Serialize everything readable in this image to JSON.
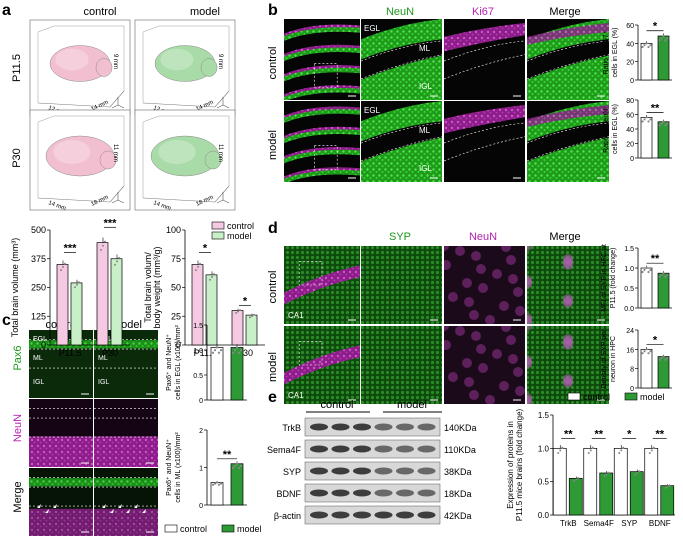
{
  "colors": {
    "green_fluor": "#2fdc2a",
    "magenta_fluor": "#cc2fc6",
    "control_bar": "#f6c9e3",
    "model_bar": "#c9efc9",
    "control_bar_e": "#ffffff",
    "model_bar_e": "#2e9a35",
    "brain_control": "#f2bfd0",
    "brain_model": "#a9dba8"
  },
  "panel_a": {
    "letter": "a",
    "col_headers": [
      "control",
      "model"
    ],
    "row_labels": [
      "P11.5",
      "P30"
    ],
    "dims": {
      "p115_control": [
        "12 mm",
        "14 mm",
        "9 mm"
      ],
      "p115_model": [
        "12 mm",
        "14 mm",
        "9 mm"
      ],
      "p30_control": [
        "14 mm",
        "18 mm",
        "11 mm"
      ],
      "p30_model": [
        "14 mm",
        "18 mm",
        "11 mm"
      ]
    },
    "axis_letters": [
      "x",
      "y",
      "z"
    ]
  },
  "panel_b": {
    "letter": "b",
    "col_headers": [
      "NeuN",
      "Ki67",
      "Merge"
    ],
    "row_labels": [
      "control",
      "model"
    ],
    "region_labels": {
      "egl": "EGL",
      "ml": "ML",
      "igl": "IGL"
    }
  },
  "panel_c": {
    "letter": "c",
    "col_headers": [
      "control",
      "model"
    ],
    "row_labels": [
      "Pax6",
      "NeuN",
      "Merge"
    ],
    "region_labels": {
      "egl": "EGL",
      "ml": "ML",
      "igl": "IGL"
    }
  },
  "panel_d": {
    "letter": "d",
    "col_headers": [
      "SYP",
      "NeuN",
      "Merge"
    ],
    "row_labels": [
      "control",
      "model"
    ],
    "region_label": "CA1"
  },
  "panel_e": {
    "letter": "e",
    "group_labels": [
      "control",
      "model"
    ],
    "bands": [
      "TrkB",
      "Sema4F",
      "SYP",
      "BDNF",
      "β-actin"
    ],
    "kda": [
      "140KDa",
      "110KDa",
      "38KDa",
      "18KDa",
      "42KDa"
    ]
  },
  "legend_main": {
    "control": "control",
    "model": "model"
  },
  "chart_data": [
    {
      "id": "a-left",
      "type": "bar",
      "categories": [
        "P11.5",
        "P30"
      ],
      "series": [
        {
          "name": "control",
          "values": [
            350,
            445
          ]
        },
        {
          "name": "model",
          "values": [
            270,
            375
          ]
        }
      ],
      "ylabel": "Total brain volume (mm³)",
      "ylim": [
        0,
        500
      ],
      "yticks": [
        "0",
        "125",
        "250",
        "375",
        "500"
      ],
      "significance": [
        "***",
        "***"
      ]
    },
    {
      "id": "a-right",
      "type": "bar",
      "categories": [
        "P11.5",
        "P30"
      ],
      "series": [
        {
          "name": "control",
          "values": [
            70,
            30
          ]
        },
        {
          "name": "model",
          "values": [
            61,
            26
          ]
        }
      ],
      "ylabel": "Total brain volum/ body weight (mm³/g)",
      "ylim": [
        0,
        100
      ],
      "yticks": [
        "0",
        "25",
        "50",
        "75",
        "100"
      ],
      "significance": [
        "*",
        "*"
      ]
    },
    {
      "id": "b-top",
      "type": "bar",
      "categories": [
        "control",
        "model"
      ],
      "values": [
        40,
        48
      ],
      "ylabel": "Ratio of Ki67⁺ cells in EGL (%)",
      "ylim": [
        0,
        60
      ],
      "yticks": [
        "0",
        "20",
        "40",
        "60"
      ],
      "significance": "*"
    },
    {
      "id": "b-bottom",
      "type": "bar",
      "categories": [
        "control",
        "model"
      ],
      "values": [
        56,
        50
      ],
      "ylabel": "Ratio of NeuN⁺ cells in EGL (%)",
      "ylim": [
        0,
        80
      ],
      "yticks": [
        "0",
        "20",
        "40",
        "60",
        "80"
      ],
      "significance": "**"
    },
    {
      "id": "c-top",
      "type": "bar",
      "categories": [
        "control",
        "model"
      ],
      "values": [
        1.05,
        1.05
      ],
      "ylabel": "Pax6⁺ and NeuN⁺ cells in EGL (x100)/mm²",
      "ylim": [
        0,
        1.5
      ],
      "yticks": [
        "0",
        "0.5",
        "1.0",
        "1.5"
      ]
    },
    {
      "id": "c-bottom",
      "type": "bar",
      "categories": [
        "control",
        "model"
      ],
      "values": [
        0.6,
        1.1
      ],
      "ylabel": "Pax6⁺ and NeuN⁺ cells in ML (x100)/mm²",
      "ylim": [
        0,
        2
      ],
      "yticks": [
        "0",
        "1",
        "2"
      ],
      "significance": "**"
    },
    {
      "id": "d-top",
      "type": "bar",
      "categories": [
        "control",
        "model"
      ],
      "values": [
        1.0,
        0.87
      ],
      "ylabel": "MFI of SYP in HPC at P11.5 (fold change)",
      "ylim": [
        0,
        1.5
      ],
      "yticks": [
        "0.0",
        "0.5",
        "1.0",
        "1.5"
      ],
      "significance": "**"
    },
    {
      "id": "d-bottom",
      "type": "bar",
      "categories": [
        "control",
        "model"
      ],
      "values": [
        16,
        13
      ],
      "ylabel": "Density of SYP per neuron in HPC",
      "ylim": [
        0,
        24
      ],
      "yticks": [
        "0",
        "8",
        "16",
        "24"
      ],
      "significance": "*"
    },
    {
      "id": "e-right",
      "type": "bar",
      "categories": [
        "TrkB",
        "Sema4F",
        "SYP",
        "BDNF"
      ],
      "series": [
        {
          "name": "control",
          "values": [
            1.0,
            1.0,
            1.0,
            1.0
          ]
        },
        {
          "name": "model",
          "values": [
            0.55,
            0.63,
            0.65,
            0.44
          ]
        }
      ],
      "ylabel": "Expression of proteins in P11.5 mice brains (fold change)",
      "ylim": [
        0,
        1.5
      ],
      "yticks": [
        "0.0",
        "0.5",
        "1.0",
        "1.5"
      ],
      "significance": [
        "**",
        "**",
        "*",
        "**"
      ]
    }
  ]
}
